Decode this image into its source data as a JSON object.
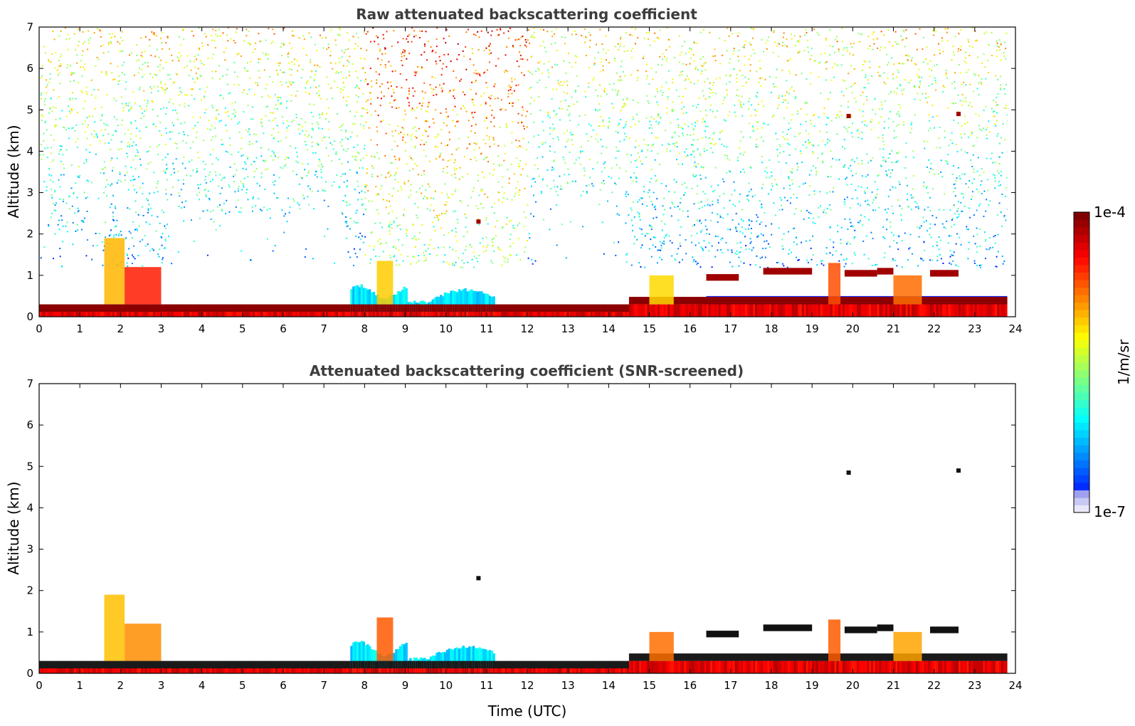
{
  "chart_data": [
    {
      "type": "heatmap",
      "title": "Raw attenuated backscattering coefficient",
      "xlabel": "",
      "ylabel": "Altitude (km)",
      "xlim": [
        0,
        24
      ],
      "ylim": [
        0,
        7
      ],
      "xticks": [
        "0",
        "1",
        "2",
        "3",
        "4",
        "5",
        "6",
        "7",
        "8",
        "9",
        "10",
        "11",
        "12",
        "13",
        "14",
        "15",
        "16",
        "17",
        "18",
        "19",
        "20",
        "21",
        "22",
        "23",
        "24"
      ],
      "yticks": [
        "0",
        "1",
        "2",
        "3",
        "4",
        "5",
        "6",
        "7"
      ],
      "data_end_hour": 23.8
    },
    {
      "type": "heatmap",
      "title": "Attenuated backscattering coefficient (SNR-screened)",
      "xlabel": "Time (UTC)",
      "ylabel": "Altitude (km)",
      "xlim": [
        0,
        24
      ],
      "ylim": [
        0,
        7
      ],
      "xticks": [
        "0",
        "1",
        "2",
        "3",
        "4",
        "5",
        "6",
        "7",
        "8",
        "9",
        "10",
        "11",
        "12",
        "13",
        "14",
        "15",
        "16",
        "17",
        "18",
        "19",
        "20",
        "21",
        "22",
        "23",
        "24"
      ],
      "yticks": [
        "0",
        "1",
        "2",
        "3",
        "4",
        "5",
        "6",
        "7"
      ],
      "data_end_hour": 23.8
    }
  ],
  "colorbar": {
    "label": "1/m/sr",
    "max_label": "1e-4",
    "min_label": "1e-7",
    "colormap": "jet",
    "scale": "log",
    "range": [
      1e-07,
      0.0001
    ]
  }
}
